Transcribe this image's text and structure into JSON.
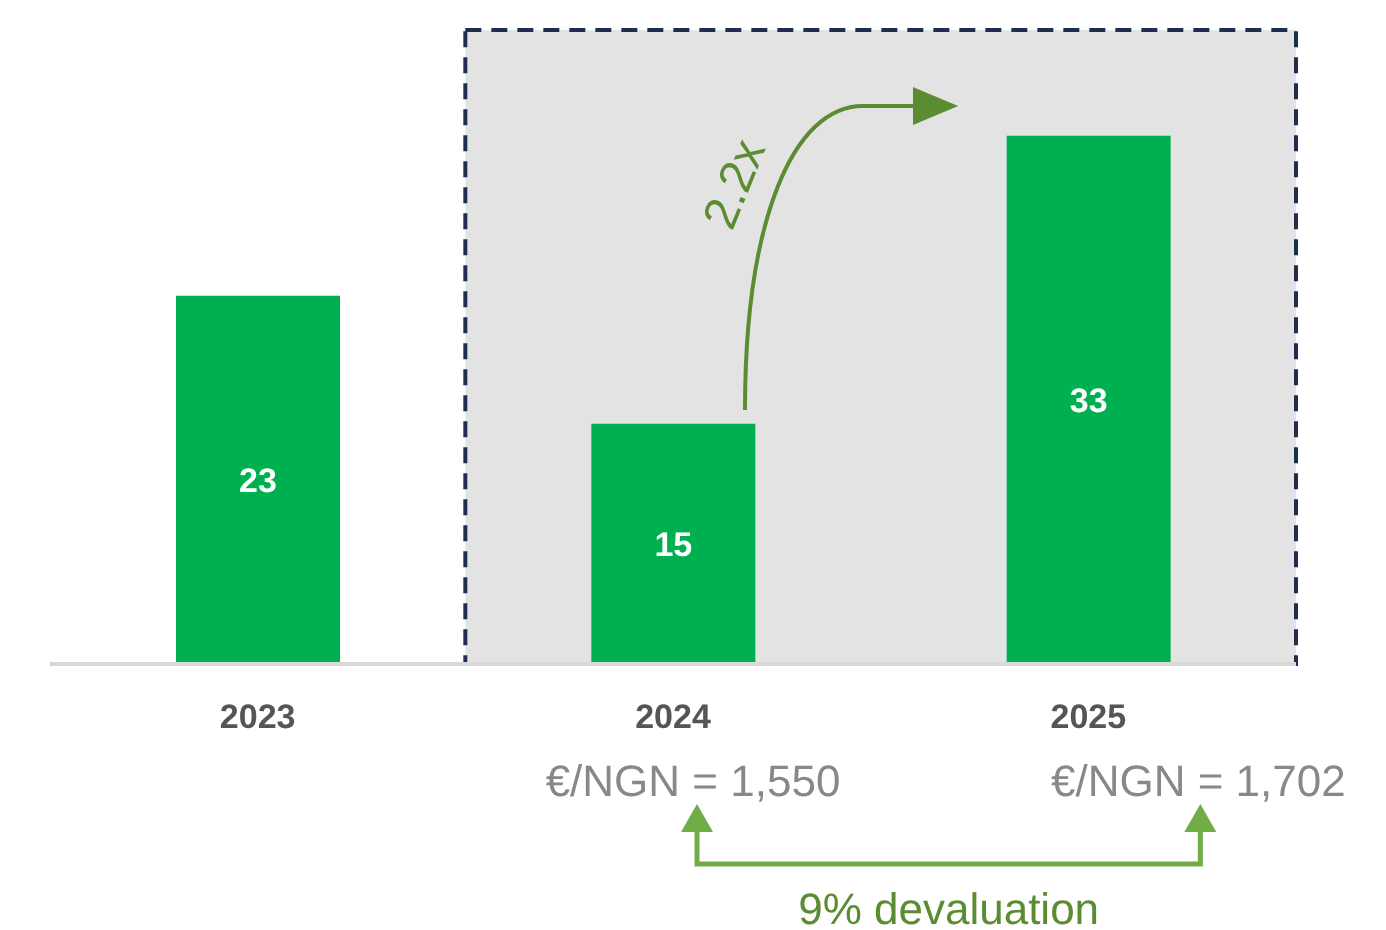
{
  "chart_data": {
    "type": "bar",
    "categories": [
      "2023",
      "2024",
      "2025"
    ],
    "values": [
      23,
      15,
      33
    ],
    "color": "#00b050",
    "data_labels": true,
    "bands": [
      {
        "axis": "x",
        "from": "2024",
        "to": "2025",
        "color": "#e3e3e3"
      }
    ],
    "annotations": [
      "2.2x",
      "€/NGN = 1,550",
      "€/NGN = 1,702",
      "9% devaluation"
    ]
  }
}
